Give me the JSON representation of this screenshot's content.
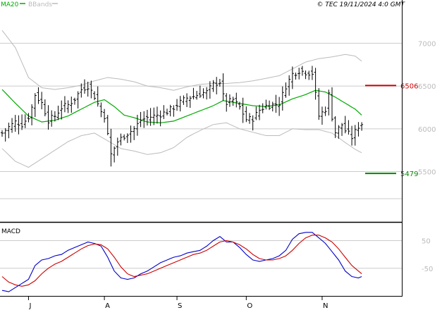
{
  "header": {
    "legend_ma_label": "MA20",
    "legend_bb_label": "BBands",
    "copyright": "© TEC 19/11/2024 4:0 GMT"
  },
  "colors": {
    "ma": "#00aa00",
    "bbands": "#bbbbbb",
    "bars": "#000000",
    "resistance": "#cc0000",
    "support": "#008800",
    "macd": "#0000cc",
    "signal": "#cc0000",
    "grid": "#cccccc",
    "tick_text": "#bbbbbb"
  },
  "chart_data": [
    {
      "type": "ohlc",
      "y_ticks": [
        {
          "value": 7000,
          "label": "7000"
        },
        {
          "value": 6500,
          "label": "6500"
        },
        {
          "value": 6000,
          "label": "6000"
        },
        {
          "value": 5500,
          "label": "5500"
        }
      ],
      "ylim": [
        4920,
        7390
      ],
      "x_ticks": [
        {
          "index": 8,
          "label": "J"
        },
        {
          "index": 31,
          "label": "A"
        },
        {
          "index": 53,
          "label": "S"
        },
        {
          "index": 74,
          "label": "O"
        },
        {
          "index": 97,
          "label": "N"
        }
      ],
      "n_bars": 110,
      "levels": [
        {
          "name": "resistance",
          "value": 6506,
          "label": "6506"
        },
        {
          "name": "support",
          "value": 5479,
          "label": "5479"
        }
      ],
      "close_anchors": [
        [
          0,
          5950
        ],
        [
          2,
          6020
        ],
        [
          4,
          6080
        ],
        [
          6,
          6050
        ],
        [
          8,
          6140
        ],
        [
          9,
          6250
        ],
        [
          10,
          6400
        ],
        [
          12,
          6300
        ],
        [
          14,
          6100
        ],
        [
          16,
          6150
        ],
        [
          18,
          6250
        ],
        [
          20,
          6280
        ],
        [
          22,
          6350
        ],
        [
          24,
          6460
        ],
        [
          26,
          6500
        ],
        [
          28,
          6380
        ],
        [
          30,
          6200
        ],
        [
          31,
          6150
        ],
        [
          33,
          5700
        ],
        [
          35,
          5850
        ],
        [
          37,
          5920
        ],
        [
          40,
          6000
        ],
        [
          42,
          6100
        ],
        [
          44,
          6130
        ],
        [
          46,
          6150
        ],
        [
          48,
          6170
        ],
        [
          50,
          6200
        ],
        [
          52,
          6250
        ],
        [
          54,
          6310
        ],
        [
          56,
          6360
        ],
        [
          58,
          6380
        ],
        [
          60,
          6410
        ],
        [
          62,
          6430
        ],
        [
          64,
          6520
        ],
        [
          66,
          6550
        ],
        [
          67,
          6380
        ],
        [
          68,
          6300
        ],
        [
          70,
          6340
        ],
        [
          72,
          6250
        ],
        [
          74,
          6110
        ],
        [
          76,
          6120
        ],
        [
          78,
          6220
        ],
        [
          80,
          6270
        ],
        [
          82,
          6280
        ],
        [
          84,
          6300
        ],
        [
          86,
          6500
        ],
        [
          88,
          6640
        ],
        [
          90,
          6680
        ],
        [
          92,
          6660
        ],
        [
          94,
          6650
        ],
        [
          96,
          6150
        ],
        [
          98,
          6230
        ],
        [
          99,
          6400
        ],
        [
          100,
          6140
        ],
        [
          101,
          5960
        ],
        [
          103,
          6050
        ],
        [
          104,
          5980
        ],
        [
          106,
          5900
        ],
        [
          108,
          6030
        ],
        [
          109,
          6060
        ]
      ],
      "bollinger": {
        "upper_anchors": [
          [
            0,
            7150
          ],
          [
            4,
            6950
          ],
          [
            8,
            6600
          ],
          [
            12,
            6480
          ],
          [
            16,
            6460
          ],
          [
            20,
            6480
          ],
          [
            24,
            6510
          ],
          [
            28,
            6560
          ],
          [
            32,
            6600
          ],
          [
            36,
            6580
          ],
          [
            40,
            6550
          ],
          [
            44,
            6500
          ],
          [
            48,
            6480
          ],
          [
            52,
            6450
          ],
          [
            56,
            6490
          ],
          [
            60,
            6520
          ],
          [
            64,
            6530
          ],
          [
            68,
            6530
          ],
          [
            72,
            6540
          ],
          [
            76,
            6560
          ],
          [
            80,
            6590
          ],
          [
            84,
            6620
          ],
          [
            88,
            6700
          ],
          [
            92,
            6780
          ],
          [
            96,
            6820
          ],
          [
            100,
            6840
          ],
          [
            104,
            6870
          ],
          [
            107,
            6850
          ],
          [
            109,
            6790
          ]
        ],
        "lower_anchors": [
          [
            0,
            5770
          ],
          [
            4,
            5620
          ],
          [
            8,
            5550
          ],
          [
            12,
            5650
          ],
          [
            16,
            5750
          ],
          [
            20,
            5850
          ],
          [
            24,
            5920
          ],
          [
            28,
            5950
          ],
          [
            32,
            5860
          ],
          [
            36,
            5770
          ],
          [
            40,
            5740
          ],
          [
            44,
            5700
          ],
          [
            48,
            5720
          ],
          [
            52,
            5780
          ],
          [
            56,
            5900
          ],
          [
            60,
            5980
          ],
          [
            64,
            6050
          ],
          [
            68,
            6070
          ],
          [
            72,
            6000
          ],
          [
            76,
            5960
          ],
          [
            80,
            5920
          ],
          [
            84,
            5920
          ],
          [
            88,
            6000
          ],
          [
            92,
            5990
          ],
          [
            96,
            5990
          ],
          [
            100,
            5950
          ],
          [
            104,
            5840
          ],
          [
            107,
            5760
          ],
          [
            109,
            5720
          ]
        ],
        "mid_anchors": [
          [
            0,
            6460
          ],
          [
            4,
            6300
          ],
          [
            8,
            6150
          ],
          [
            12,
            6080
          ],
          [
            16,
            6100
          ],
          [
            20,
            6150
          ],
          [
            24,
            6230
          ],
          [
            28,
            6310
          ],
          [
            31,
            6340
          ],
          [
            34,
            6260
          ],
          [
            37,
            6160
          ],
          [
            40,
            6130
          ],
          [
            44,
            6080
          ],
          [
            48,
            6070
          ],
          [
            52,
            6090
          ],
          [
            56,
            6150
          ],
          [
            60,
            6210
          ],
          [
            64,
            6270
          ],
          [
            67,
            6330
          ],
          [
            70,
            6310
          ],
          [
            73,
            6290
          ],
          [
            76,
            6270
          ],
          [
            80,
            6260
          ],
          [
            84,
            6280
          ],
          [
            88,
            6350
          ],
          [
            92,
            6400
          ],
          [
            95,
            6450
          ],
          [
            98,
            6430
          ],
          [
            101,
            6370
          ],
          [
            104,
            6300
          ],
          [
            107,
            6230
          ],
          [
            109,
            6160
          ]
        ]
      },
      "price_ma_label": "MA20",
      "bbands_label": "BBands"
    },
    {
      "type": "line",
      "title": "MACD",
      "y_ticks": [
        {
          "value": 50,
          "label": "50"
        },
        {
          "value": -50,
          "label": "-50"
        }
      ],
      "ylim": [
        -150,
        110
      ],
      "series": [
        {
          "color_key": "macd",
          "anchors": [
            [
              0,
              -130
            ],
            [
              2,
              -135
            ],
            [
              4,
              -120
            ],
            [
              6,
              -105
            ],
            [
              8,
              -90
            ],
            [
              10,
              -40
            ],
            [
              12,
              -20
            ],
            [
              14,
              -15
            ],
            [
              16,
              -5
            ],
            [
              18,
              0
            ],
            [
              20,
              15
            ],
            [
              22,
              25
            ],
            [
              24,
              35
            ],
            [
              26,
              45
            ],
            [
              28,
              40
            ],
            [
              30,
              30
            ],
            [
              32,
              -10
            ],
            [
              34,
              -60
            ],
            [
              36,
              -85
            ],
            [
              38,
              -90
            ],
            [
              40,
              -85
            ],
            [
              42,
              -70
            ],
            [
              44,
              -60
            ],
            [
              46,
              -45
            ],
            [
              48,
              -30
            ],
            [
              50,
              -20
            ],
            [
              52,
              -10
            ],
            [
              54,
              -5
            ],
            [
              56,
              5
            ],
            [
              58,
              10
            ],
            [
              60,
              15
            ],
            [
              62,
              30
            ],
            [
              64,
              50
            ],
            [
              66,
              65
            ],
            [
              67,
              55
            ],
            [
              68,
              45
            ],
            [
              70,
              45
            ],
            [
              72,
              25
            ],
            [
              74,
              0
            ],
            [
              76,
              -20
            ],
            [
              78,
              -25
            ],
            [
              80,
              -20
            ],
            [
              82,
              -15
            ],
            [
              84,
              -5
            ],
            [
              86,
              15
            ],
            [
              88,
              55
            ],
            [
              90,
              75
            ],
            [
              92,
              80
            ],
            [
              94,
              80
            ],
            [
              96,
              60
            ],
            [
              98,
              40
            ],
            [
              100,
              10
            ],
            [
              102,
              -20
            ],
            [
              104,
              -60
            ],
            [
              106,
              -80
            ],
            [
              108,
              -85
            ],
            [
              109,
              -80
            ]
          ]
        },
        {
          "color_key": "signal",
          "anchors": [
            [
              0,
              -80
            ],
            [
              2,
              -100
            ],
            [
              4,
              -110
            ],
            [
              6,
              -115
            ],
            [
              8,
              -110
            ],
            [
              10,
              -95
            ],
            [
              12,
              -70
            ],
            [
              14,
              -50
            ],
            [
              16,
              -35
            ],
            [
              18,
              -25
            ],
            [
              20,
              -10
            ],
            [
              22,
              5
            ],
            [
              24,
              20
            ],
            [
              26,
              32
            ],
            [
              28,
              38
            ],
            [
              30,
              35
            ],
            [
              32,
              20
            ],
            [
              34,
              -10
            ],
            [
              36,
              -45
            ],
            [
              38,
              -70
            ],
            [
              40,
              -80
            ],
            [
              42,
              -75
            ],
            [
              44,
              -70
            ],
            [
              46,
              -60
            ],
            [
              48,
              -50
            ],
            [
              50,
              -40
            ],
            [
              52,
              -30
            ],
            [
              54,
              -20
            ],
            [
              56,
              -10
            ],
            [
              58,
              0
            ],
            [
              60,
              5
            ],
            [
              62,
              15
            ],
            [
              64,
              30
            ],
            [
              66,
              45
            ],
            [
              68,
              50
            ],
            [
              70,
              45
            ],
            [
              72,
              35
            ],
            [
              74,
              20
            ],
            [
              76,
              0
            ],
            [
              78,
              -15
            ],
            [
              80,
              -20
            ],
            [
              82,
              -20
            ],
            [
              84,
              -15
            ],
            [
              86,
              -5
            ],
            [
              88,
              15
            ],
            [
              90,
              40
            ],
            [
              92,
              60
            ],
            [
              94,
              70
            ],
            [
              96,
              70
            ],
            [
              98,
              60
            ],
            [
              100,
              45
            ],
            [
              102,
              20
            ],
            [
              104,
              -10
            ],
            [
              106,
              -40
            ],
            [
              108,
              -60
            ],
            [
              109,
              -70
            ]
          ]
        }
      ]
    }
  ]
}
